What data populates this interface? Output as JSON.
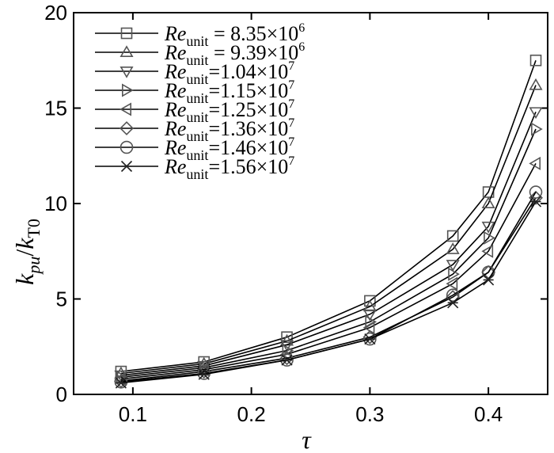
{
  "chart_data": {
    "type": "line",
    "xlabel": "τ",
    "ylabel": {
      "k1": "k",
      "sub1": "pu",
      "slash": "/",
      "k2": "k",
      "sub2": "T0"
    },
    "xlim": [
      0.05,
      0.45
    ],
    "ylim": [
      0,
      20
    ],
    "xticks": [
      0.1,
      0.2,
      0.3,
      0.4
    ],
    "xtick_labels": [
      "0.1",
      "0.2",
      "0.3",
      "0.4"
    ],
    "yticks": [
      0,
      5,
      10,
      15,
      20
    ],
    "ytick_labels": [
      "0",
      "5",
      "10",
      "15",
      "20"
    ],
    "grid": false,
    "legend_position": "top-left",
    "line_color": "#000000",
    "marker_color": "#555555",
    "x": [
      0.09,
      0.16,
      0.23,
      0.3,
      0.37,
      0.4,
      0.44
    ],
    "series": [
      {
        "name": "Re_unit = 8.35×10^6",
        "legend": {
          "re": "Re",
          "sub": "unit",
          "val": " = 8.35×10",
          "exp": "6"
        },
        "marker": "square",
        "values": [
          1.2,
          1.7,
          3.0,
          4.9,
          8.3,
          10.6,
          17.5
        ]
      },
      {
        "name": "Re_unit = 9.39×10^6",
        "legend": {
          "re": "Re",
          "sub": "unit",
          "val": " = 9.39×10",
          "exp": "6"
        },
        "marker": "triangle-up",
        "values": [
          1.1,
          1.6,
          2.8,
          4.6,
          7.6,
          10.0,
          16.2
        ]
      },
      {
        "name": "Re_unit=1.04×10^7",
        "legend": {
          "re": "Re",
          "sub": "unit",
          "val": "=1.04×10",
          "exp": "7"
        },
        "marker": "triangle-down",
        "values": [
          1.0,
          1.5,
          2.6,
          4.2,
          6.8,
          8.8,
          14.8
        ]
      },
      {
        "name": "Re_unit=1.15×10^7",
        "legend": {
          "re": "Re",
          "sub": "unit",
          "val": "=1.15×10",
          "exp": "7"
        },
        "marker": "triangle-right",
        "values": [
          0.9,
          1.4,
          2.3,
          3.8,
          6.3,
          8.2,
          13.9
        ]
      },
      {
        "name": "Re_unit=1.25×10^7",
        "legend": {
          "re": "Re",
          "sub": "unit",
          "val": "=1.25×10",
          "exp": "7"
        },
        "marker": "triangle-left",
        "values": [
          0.8,
          1.3,
          2.1,
          3.5,
          5.8,
          7.5,
          12.1
        ]
      },
      {
        "name": "Re_unit=1.36×10^7",
        "legend": {
          "re": "Re",
          "sub": "unit",
          "val": "=1.36×10",
          "exp": "7"
        },
        "marker": "diamond",
        "values": [
          0.7,
          1.2,
          1.9,
          3.0,
          5.1,
          6.4,
          10.3
        ]
      },
      {
        "name": "Re_unit=1.46×10^7",
        "legend": {
          "re": "Re",
          "sub": "unit",
          "val": "=1.46×10",
          "exp": "7"
        },
        "marker": "circle",
        "values": [
          0.65,
          1.1,
          1.8,
          2.9,
          5.2,
          6.4,
          10.6
        ]
      },
      {
        "name": "Re_unit=1.56×10^7",
        "legend": {
          "re": "Re",
          "sub": "unit",
          "val": "=1.56×10",
          "exp": "7"
        },
        "marker": "star",
        "values": [
          0.6,
          1.05,
          1.8,
          2.9,
          4.8,
          6.0,
          10.1
        ]
      }
    ]
  }
}
